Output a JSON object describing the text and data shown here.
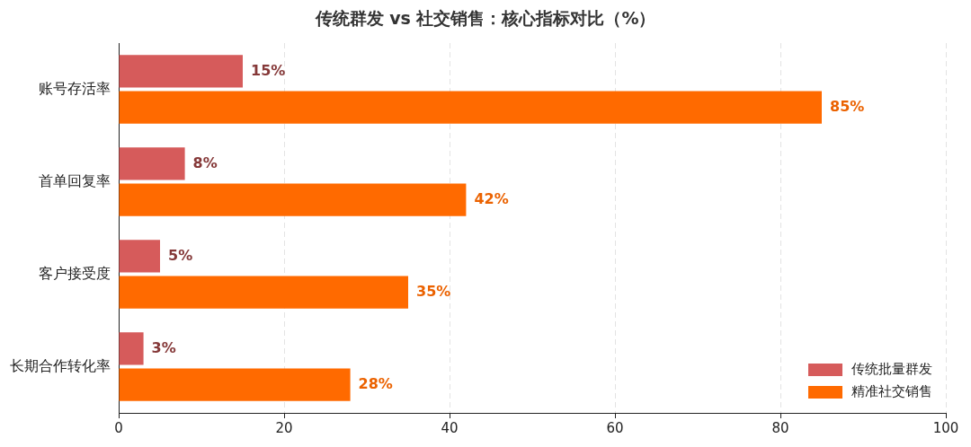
{
  "chart_data": {
    "type": "bar",
    "orientation": "horizontal",
    "title": "传统群发 vs 社交销售：核心指标对比（%）",
    "categories": [
      "账号存活率",
      "首单回复率",
      "客户接受度",
      "长期合作转化率"
    ],
    "series": [
      {
        "name": "传统批量群发",
        "color": "#d65b5b",
        "values": [
          15,
          8,
          5,
          3
        ],
        "value_labels": [
          "15%",
          "8%",
          "5%",
          "3%"
        ]
      },
      {
        "name": "精准社交销售",
        "color": "#ff6a00",
        "values": [
          85,
          42,
          35,
          28
        ],
        "value_labels": [
          "85%",
          "42%",
          "35%",
          "28%"
        ]
      }
    ],
    "xlim": [
      0,
      100
    ],
    "xticks": [
      0,
      20,
      40,
      60,
      80,
      100
    ],
    "grid": "x",
    "legend": "bottom right"
  }
}
